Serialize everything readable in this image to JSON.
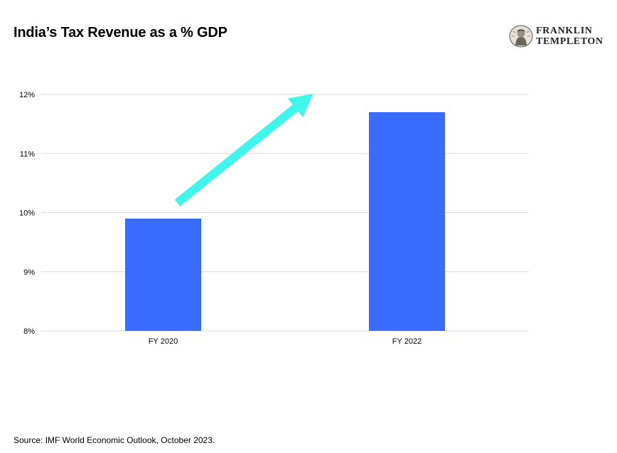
{
  "header": {
    "title": "India’s Tax Revenue as a % GDP"
  },
  "logo": {
    "line1": "FRANKLIN",
    "line2": "TEMPLETON",
    "icon": "franklin-portrait-icon"
  },
  "footer": {
    "source": "Source: IMF World Economic Outlook, October 2023."
  },
  "colors": {
    "bar": "#3a6bff",
    "arrow": "#3ff6ec",
    "grid": "#d9d9d9"
  },
  "chart_data": {
    "type": "bar",
    "title": "India’s Tax Revenue as a % GDP",
    "xlabel": "",
    "ylabel": "",
    "categories": [
      "FY 2020",
      "FY 2022"
    ],
    "values": [
      9.9,
      11.7
    ],
    "ylim": [
      8,
      12
    ],
    "yticks": [
      8,
      9,
      10,
      11,
      12
    ],
    "ytick_labels": [
      "8%",
      "9%",
      "10%",
      "11%",
      "12%"
    ],
    "grid": true,
    "legend": "none",
    "annotations": [
      {
        "type": "arrow",
        "direction": "up-right",
        "meaning": "increase"
      }
    ]
  }
}
